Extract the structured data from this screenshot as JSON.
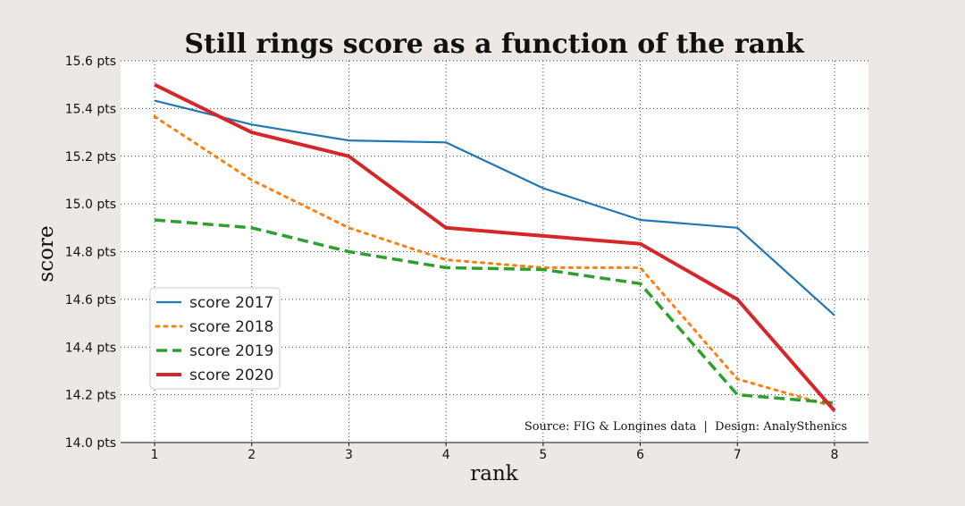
{
  "chart_data": {
    "type": "line",
    "title": "Still rings score as a function of the rank",
    "xlabel": "rank",
    "ylabel": "score",
    "x": [
      1,
      2,
      3,
      4,
      5,
      6,
      7,
      8
    ],
    "x_tick_labels": [
      "1",
      "2",
      "3",
      "4",
      "5",
      "6",
      "7",
      "8"
    ],
    "xlim": [
      0.65,
      8.35
    ],
    "ylim": [
      14.0,
      15.6
    ],
    "y_ticks": [
      14.0,
      14.2,
      14.4,
      14.6,
      14.8,
      15.0,
      15.2,
      15.4,
      15.6
    ],
    "y_tick_labels": [
      "14.0 pts",
      "14.2 pts",
      "14.4 pts",
      "14.6 pts",
      "14.8 pts",
      "15.0 pts",
      "15.2 pts",
      "15.4 pts",
      "15.6 pts"
    ],
    "grid": true,
    "legend_position": "center-left",
    "source_note": "Source: FIG & Longines data  |  Design: AnalySthenics",
    "series": [
      {
        "name": "score 2017",
        "color": "#1f77b4",
        "style": "solid",
        "values": [
          15.433,
          15.333,
          15.266,
          15.258,
          15.066,
          14.933,
          14.9,
          14.533
        ]
      },
      {
        "name": "score 2018",
        "color": "#ff7f0e",
        "style": "dotted",
        "values": [
          15.366,
          15.1,
          14.9,
          14.766,
          14.733,
          14.733,
          14.266,
          14.15
        ]
      },
      {
        "name": "score 2019",
        "color": "#2ca02c",
        "style": "dashed",
        "values": [
          14.933,
          14.9,
          14.8,
          14.733,
          14.725,
          14.666,
          14.2,
          14.166
        ]
      },
      {
        "name": "score 2020",
        "color": "#d62728",
        "style": "solid-thick",
        "values": [
          15.5,
          15.3,
          15.2,
          14.9,
          14.866,
          14.833,
          14.6,
          14.133
        ]
      }
    ]
  }
}
